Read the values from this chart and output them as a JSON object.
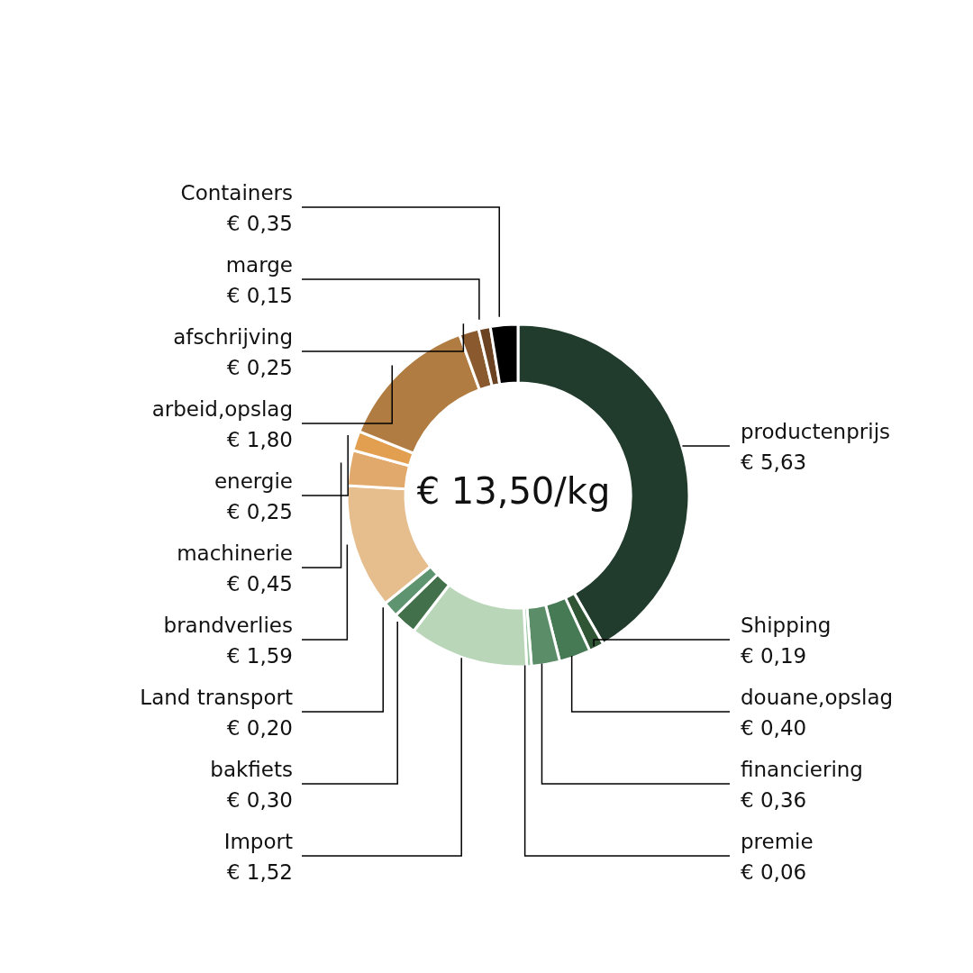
{
  "chart_data": {
    "type": "donut",
    "categories": [
      "productenprijs",
      "Shipping",
      "douane,opslag",
      "financiering",
      "premie",
      "Import",
      "bakfiets",
      "Land transport",
      "brandverlies",
      "machinerie",
      "energie",
      "arbeid,opslag",
      "afschrijving",
      "marge",
      "Containers"
    ],
    "values": [
      5.63,
      0.19,
      0.4,
      0.36,
      0.06,
      1.52,
      0.3,
      0.2,
      1.59,
      0.45,
      0.25,
      1.8,
      0.25,
      0.15,
      0.35
    ],
    "value_labels": [
      "€ 5,63",
      "€ 0,19",
      "€ 0,40",
      "€ 0,36",
      "€ 0,06",
      "€ 1,52",
      "€ 0,30",
      "€ 0,20",
      "€ 1,59",
      "€ 0,45",
      "€ 0,25",
      "€ 1,80",
      "€ 0,25",
      "€ 0,15",
      "€ 0,35"
    ],
    "colors": [
      "#213b2c",
      "#2f5535",
      "#467a55",
      "#5a8d68",
      "#9cc7a5",
      "#b9d6b9",
      "#42704a",
      "#5e9470",
      "#e6bd8c",
      "#e1aa6c",
      "#e39f50",
      "#b07c42",
      "#8a5a2e",
      "#6b4222",
      "#000000"
    ],
    "annotations": [
      "€ 13,50/kg"
    ],
    "legend": false
  }
}
